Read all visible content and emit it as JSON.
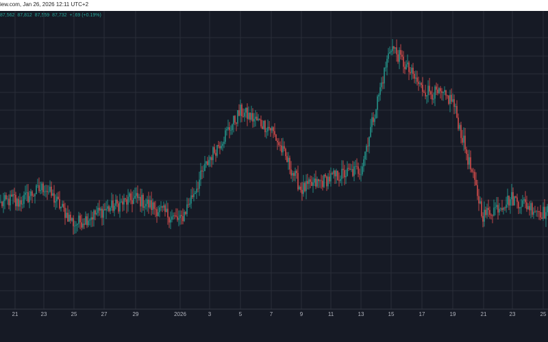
{
  "header": {
    "source_date": "iew.com,  Jan 26, 2026 12:11 UTC+2"
  },
  "ohlc": {
    "open": "87,562",
    "high": "87,812",
    "low": "87,559",
    "close": "87,732",
    "change": "+169 (+0.19%)"
  },
  "colors": {
    "background": "#161a25",
    "grid": "#2a2e39",
    "up": "#26a69a",
    "down": "#ef5350",
    "text": "#b2b5be"
  },
  "chart_data": {
    "type": "line",
    "style": "candlestick",
    "grid": true,
    "x_ticks": [
      "21",
      "23",
      "25",
      "27",
      "29",
      "2026",
      "3",
      "5",
      "7",
      "9",
      "11",
      "13",
      "15",
      "17",
      "19",
      "21",
      "23",
      "25"
    ],
    "ylim": [
      0,
      1
    ],
    "series": [
      {
        "x": [
          "21",
          "23",
          "25",
          "27",
          "29",
          "2026",
          "3",
          "5",
          "7",
          "9",
          "11",
          "13",
          "15",
          "17",
          "19",
          "21",
          "23",
          "25"
        ],
        "values": [
          0.36,
          0.42,
          0.29,
          0.34,
          0.38,
          0.3,
          0.52,
          0.68,
          0.62,
          0.41,
          0.45,
          0.48,
          0.91,
          0.76,
          0.72,
          0.32,
          0.38,
          0.33
        ]
      }
    ]
  }
}
